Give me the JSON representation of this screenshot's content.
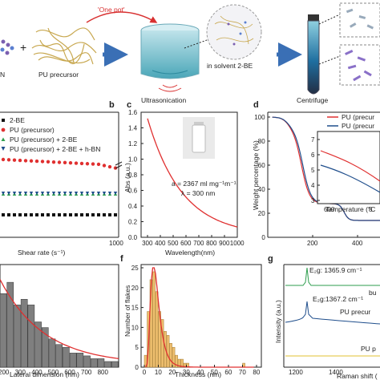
{
  "scheme": {
    "one_pot": "'One pot'",
    "hbn_fragment": "N",
    "plus": "+",
    "pu_precursor": "PU precursor",
    "solvent": "in solvent 2-BE",
    "ultrasonication": "Ultrasonication",
    "centrifuge": "Centrifuge"
  },
  "panels": {
    "b": {
      "label": "b",
      "xlabel": "Shear rate (s⁻¹)",
      "xtick_1000": "1000",
      "legend": [
        "2-BE",
        "PU (precursor)",
        "PU (precursor) + 2-BE",
        "PU (precursor) + 2-BE + h-BN"
      ]
    },
    "c": {
      "label": "c",
      "xlabel": "Wavelength(nm)",
      "ylabel": "Abs (a.u.)",
      "annot1": "a = 2367 ml mg⁻¹m⁻¹",
      "annot2": "λ = 300 nm"
    },
    "d": {
      "label": "d",
      "ylabel": "Weight percentage (%)",
      "xlabel": "Temperature (°C",
      "legend": [
        "PU (precur",
        "PU (precur"
      ]
    },
    "e": {
      "xlabel": "Lateral dimension (nm)"
    },
    "f": {
      "label": "f",
      "xlabel": "Thickness (nm)",
      "ylabel": "Number of flakes"
    },
    "g": {
      "label": "g",
      "ylabel": "Intensity (a.u.)",
      "xlabel": "Raman shift (",
      "peak1": "E₂g: 1365.9 cm⁻¹",
      "peak2": "E₂g:1367.2 cm⁻¹",
      "trace1": "bu",
      "trace2": "PU precur",
      "trace3": "PU p"
    }
  },
  "colors": {
    "red": "#e03030",
    "blue": "#1f4e8c",
    "green": "#2e9e4e",
    "bar_gray": "#7f7f7f",
    "bar_orange": "#f0c070",
    "arrow": "#3a6fb5"
  },
  "chart_data": [
    {
      "type": "scatter",
      "panel": "b",
      "xlabel": "Shear rate (s⁻¹)",
      "xlim": [
        0,
        1000
      ],
      "series": [
        {
          "name": "2-BE",
          "x": [
            0,
            50,
            100,
            150,
            200,
            250,
            300,
            350,
            400,
            450,
            500,
            550,
            600,
            650,
            700,
            750,
            800,
            850,
            900,
            950,
            1000
          ],
          "y_level": "lowest"
        },
        {
          "name": "PU (precursor)",
          "x": [
            0,
            50,
            100,
            150,
            200,
            250,
            300,
            350,
            400,
            450,
            500,
            550,
            600,
            650,
            700,
            750,
            800,
            850,
            900,
            950,
            1000
          ],
          "y_level": "highest, slight decrease"
        },
        {
          "name": "PU (precursor) + 2-BE",
          "y_level": "middle"
        },
        {
          "name": "PU (precursor) + 2-BE + h-BN",
          "y_level": "middle"
        }
      ]
    },
    {
      "type": "line",
      "panel": "c",
      "xlabel": "Wavelength(nm)",
      "ylabel": "Abs (a.u.)",
      "xlim": [
        250,
        1000
      ],
      "ylim": [
        0,
        1.6
      ],
      "x": [
        300,
        350,
        400,
        500,
        600,
        700,
        800,
        900,
        1000
      ],
      "series": [
        {
          "values": [
            1.48,
            1.25,
            1.05,
            0.72,
            0.48,
            0.32,
            0.2,
            0.12,
            0.07
          ]
        }
      ],
      "xticks": [
        "300",
        "400",
        "500",
        "600",
        "700",
        "800",
        "900",
        "1000"
      ],
      "yticks": [
        "0.0",
        "0.2",
        "0.4",
        "0.6",
        "0.8",
        "1.0",
        "1.2",
        "1.4",
        "1.6"
      ]
    },
    {
      "type": "line",
      "panel": "d",
      "xlabel": "Temperature (°C",
      "ylabel": "Weight percentage (%)",
      "xlim": [
        0,
        500
      ],
      "ylim": [
        0,
        100
      ],
      "x": [
        20,
        100,
        150,
        200,
        300,
        350,
        400,
        500
      ],
      "series": [
        {
          "name": "PU (precur",
          "values": [
            100,
            92,
            60,
            25,
            15,
            10,
            5,
            3
          ]
        },
        {
          "name": "PU (precur",
          "values": [
            100,
            93,
            62,
            28,
            18,
            12,
            6,
            4
          ]
        }
      ],
      "xticks": [
        "200",
        "400"
      ],
      "yticks": [
        "0",
        "20",
        "40",
        "60",
        "80",
        "100"
      ],
      "inset_xticks": [
        "600",
        "8"
      ],
      "inset_yticks": [
        "3",
        "4",
        "5",
        "6",
        "7"
      ]
    },
    {
      "type": "bar",
      "panel": "e",
      "xlabel": "Lateral dimension (nm)",
      "categories": [
        "0",
        "50",
        "100",
        "150",
        "200",
        "250",
        "300",
        "350",
        "400",
        "450",
        "500",
        "550",
        "600",
        "650",
        "700",
        "750",
        "800"
      ],
      "values": [
        26,
        30,
        22,
        24,
        22,
        16,
        14,
        10,
        8,
        7,
        5,
        5,
        4,
        3,
        3,
        2,
        2
      ],
      "xticks": [
        "200",
        "300",
        "400",
        "500",
        "600",
        "700",
        "800"
      ]
    },
    {
      "type": "bar",
      "panel": "f",
      "xlabel": "Thickness (nm)",
      "ylabel": "Number of flakes",
      "categories": [
        "2",
        "4",
        "6",
        "8",
        "10",
        "12",
        "14",
        "16",
        "18",
        "20",
        "22",
        "24",
        "26",
        "28",
        "30",
        "32",
        "72"
      ],
      "values": [
        3,
        14,
        22,
        24,
        19,
        14,
        12,
        9,
        8,
        6,
        5,
        3,
        2,
        2,
        1,
        1,
        1
      ],
      "ylim": [
        0,
        25
      ],
      "xticks": [
        "0",
        "10",
        "20",
        "30",
        "40",
        "50",
        "60",
        "70",
        "80"
      ],
      "yticks": [
        "0",
        "5",
        "10",
        "15",
        "20",
        "25"
      ]
    },
    {
      "type": "line",
      "panel": "g",
      "xlabel": "Raman shift (",
      "ylabel": "Intensity (a.u.)",
      "xticks": [
        "1200",
        "1400"
      ],
      "series": [
        {
          "name": "bu",
          "peak_cm": 1365.9
        },
        {
          "name": "PU precur",
          "peak_cm": 1367.2
        },
        {
          "name": "PU p"
        }
      ]
    }
  ]
}
